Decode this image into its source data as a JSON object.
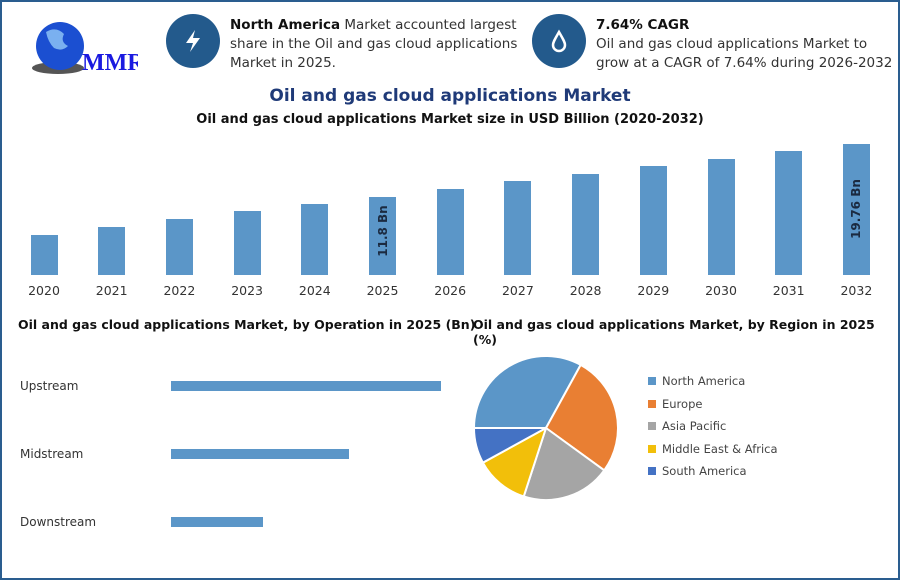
{
  "logo": {
    "text": "MMR"
  },
  "info_cards": [
    {
      "icon": "lightning-icon",
      "bold": "North America",
      "text": " Market accounted largest share in the Oil and gas cloud applications Market in 2025."
    },
    {
      "icon": "oil-drop-icon",
      "bold": "7.64% CAGR",
      "text": "Oil and gas cloud applications Market to grow at a CAGR of 7.64% during 2026-2032"
    }
  ],
  "colors": {
    "accent": "#235a8c",
    "bar": "#5b96c8",
    "title": "#1f3a78"
  },
  "chart_data": [
    {
      "type": "bar",
      "title": "Oil and gas cloud applications Market",
      "subtitle": "Oil and gas cloud applications Market size in USD Billion (2020-2032)",
      "categories": [
        "2020",
        "2021",
        "2022",
        "2023",
        "2024",
        "2025",
        "2026",
        "2027",
        "2028",
        "2029",
        "2030",
        "2031",
        "2032"
      ],
      "values": [
        6.1,
        7.3,
        8.4,
        9.6,
        10.7,
        11.8,
        12.9,
        14.2,
        15.2,
        16.4,
        17.5,
        18.7,
        19.76
      ],
      "data_labels": {
        "2025": "11.8 Bn",
        "2032": "19.76 Bn"
      },
      "ylim": [
        0,
        20
      ],
      "grid": false
    },
    {
      "type": "bar",
      "orientation": "horizontal",
      "title": "Oil and gas cloud applications Market, by Operation in 2025 (Bn)",
      "categories": [
        "Upstream",
        "Midstream",
        "Downstream"
      ],
      "values": [
        5.9,
        3.9,
        2.0
      ]
    },
    {
      "type": "pie",
      "title": "Oil and gas cloud applications Market, by Region in 2025 (%)",
      "categories": [
        "North America",
        "Europe",
        "Asia Pacific",
        "Middle East & Africa",
        "South America"
      ],
      "values": [
        33,
        27,
        20,
        12,
        8
      ],
      "colors": [
        "#5b96c8",
        "#e97f33",
        "#a5a5a5",
        "#f2bf0a",
        "#4472c4"
      ],
      "legend": "right"
    }
  ]
}
